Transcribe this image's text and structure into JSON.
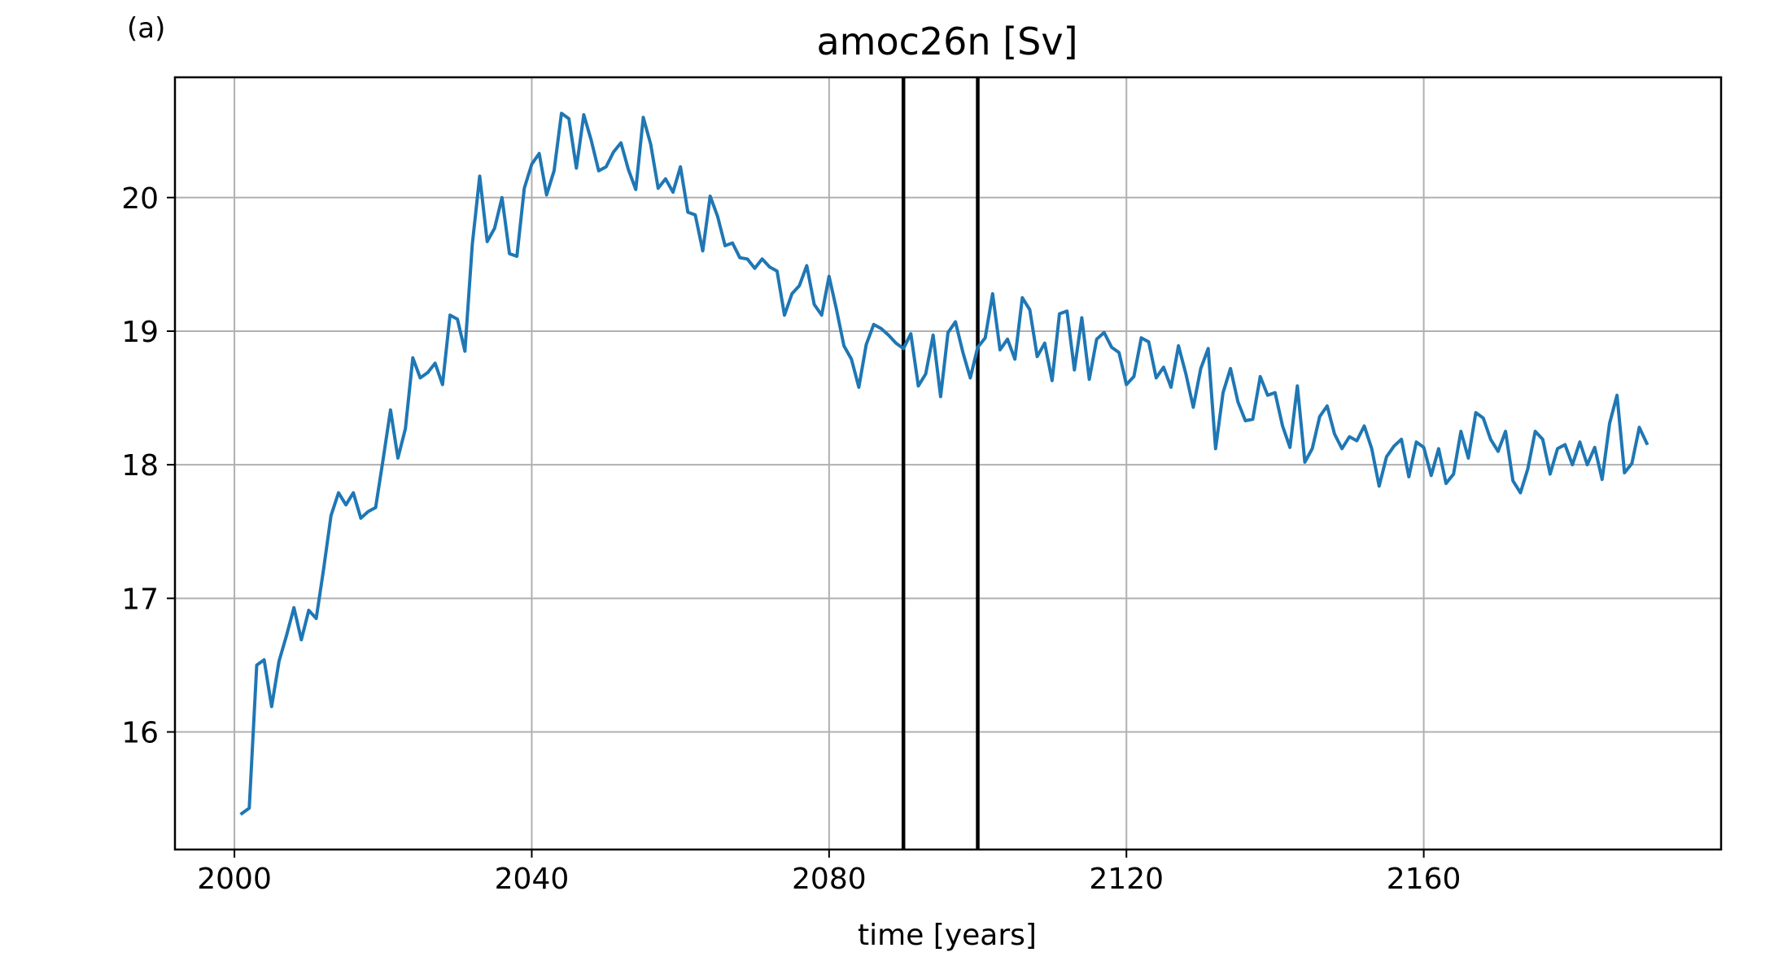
{
  "chart_data": {
    "type": "line",
    "panel_label": "(a)",
    "title": "amoc26n [Sv]",
    "xlabel": "time [years]",
    "ylabel": "",
    "xlim": [
      1992,
      2200
    ],
    "ylim": [
      15.12,
      20.9
    ],
    "xticks": [
      2000,
      2040,
      2080,
      2120,
      2160
    ],
    "yticks": [
      16,
      17,
      18,
      19,
      20
    ],
    "grid": true,
    "line_color": "#1f77b4",
    "vline_color": "#000000",
    "vlines": [
      2090,
      2100
    ],
    "series": [
      {
        "x": [
          2001,
          2002,
          2003,
          2004,
          2005,
          2006,
          2007,
          2008,
          2009,
          2010,
          2011,
          2012,
          2013,
          2014,
          2015,
          2016,
          2017,
          2018,
          2019,
          2020,
          2021,
          2022,
          2023,
          2024,
          2025,
          2026,
          2027,
          2028,
          2029,
          2030,
          2031,
          2032,
          2033,
          2034,
          2035,
          2036,
          2037,
          2038,
          2039,
          2040,
          2041,
          2042,
          2043,
          2044,
          2045,
          2046,
          2047,
          2048,
          2049,
          2050,
          2051,
          2052,
          2053,
          2054,
          2055,
          2056,
          2057,
          2058,
          2059,
          2060,
          2061,
          2062,
          2063,
          2064,
          2065,
          2066,
          2067,
          2068,
          2069,
          2070,
          2071,
          2072,
          2073,
          2074,
          2075,
          2076,
          2077,
          2078,
          2079,
          2080,
          2081,
          2082,
          2083,
          2084,
          2085,
          2086,
          2087,
          2088,
          2089,
          2090,
          2091,
          2092,
          2093,
          2094,
          2095,
          2096,
          2097,
          2098,
          2099,
          2100,
          2101,
          2102,
          2103,
          2104,
          2105,
          2106,
          2107,
          2108,
          2109,
          2110,
          2111,
          2112,
          2113,
          2114,
          2115,
          2116,
          2117,
          2118,
          2119,
          2120,
          2121,
          2122,
          2123,
          2124,
          2125,
          2126,
          2127,
          2128,
          2129,
          2130,
          2131,
          2132,
          2133,
          2134,
          2135,
          2136,
          2137,
          2138,
          2139,
          2140,
          2141,
          2142,
          2143,
          2144,
          2145,
          2146,
          2147,
          2148,
          2149,
          2150,
          2151,
          2152,
          2153,
          2154,
          2155,
          2156,
          2157,
          2158,
          2159,
          2160,
          2161,
          2162,
          2163,
          2164,
          2165,
          2166,
          2167,
          2168,
          2169,
          2170,
          2171,
          2172,
          2173,
          2174,
          2175,
          2176,
          2177,
          2178,
          2179,
          2180,
          2181,
          2182,
          2183,
          2184,
          2185,
          2186,
          2187,
          2188,
          2189,
          2190
        ],
        "y": [
          15.39,
          15.43,
          16.5,
          16.54,
          16.19,
          16.53,
          16.72,
          16.93,
          16.69,
          16.91,
          16.85,
          17.22,
          17.62,
          17.79,
          17.7,
          17.79,
          17.6,
          17.65,
          17.68,
          18.04,
          18.41,
          18.05,
          18.27,
          18.8,
          18.65,
          18.69,
          18.76,
          18.6,
          19.12,
          19.09,
          18.85,
          19.65,
          20.16,
          19.67,
          19.77,
          20,
          19.58,
          19.56,
          20.07,
          20.25,
          20.33,
          20.02,
          20.2,
          20.63,
          20.59,
          20.22,
          20.62,
          20.43,
          20.2,
          20.23,
          20.34,
          20.41,
          20.21,
          20.06,
          20.6,
          20.4,
          20.07,
          20.14,
          20.04,
          20.23,
          19.89,
          19.87,
          19.6,
          20.01,
          19.86,
          19.64,
          19.66,
          19.55,
          19.54,
          19.47,
          19.54,
          19.48,
          19.45,
          19.12,
          19.28,
          19.34,
          19.49,
          19.2,
          19.12,
          19.41,
          19.16,
          18.89,
          18.79,
          18.58,
          18.9,
          19.05,
          19.02,
          18.97,
          18.91,
          18.87,
          18.98,
          18.59,
          18.68,
          18.97,
          18.51,
          18.99,
          19.07,
          18.84,
          18.65,
          18.88,
          18.95,
          19.28,
          18.86,
          18.94,
          18.79,
          19.25,
          19.16,
          18.81,
          18.91,
          18.63,
          19.13,
          19.15,
          18.71,
          19.1,
          18.64,
          18.94,
          18.99,
          18.88,
          18.84,
          18.6,
          18.66,
          18.95,
          18.92,
          18.65,
          18.73,
          18.58,
          18.89,
          18.68,
          18.43,
          18.72,
          18.87,
          18.12,
          18.54,
          18.72,
          18.47,
          18.33,
          18.34,
          18.66,
          18.52,
          18.54,
          18.29,
          18.13,
          18.59,
          18.02,
          18.12,
          18.36,
          18.44,
          18.23,
          18.12,
          18.21,
          18.18,
          18.29,
          18.12,
          17.84,
          18.06,
          18.14,
          18.19,
          17.91,
          18.17,
          18.13,
          17.92,
          18.12,
          17.86,
          17.93,
          18.25,
          18.05,
          18.39,
          18.35,
          18.19,
          18.1,
          18.25,
          17.88,
          17.79,
          17.97,
          18.25,
          18.19,
          17.93,
          18.12,
          18.15,
          18,
          18.17,
          18,
          18.13,
          17.89,
          18.31,
          18.52,
          17.94,
          18.01,
          18.28,
          18.16
        ]
      }
    ]
  }
}
